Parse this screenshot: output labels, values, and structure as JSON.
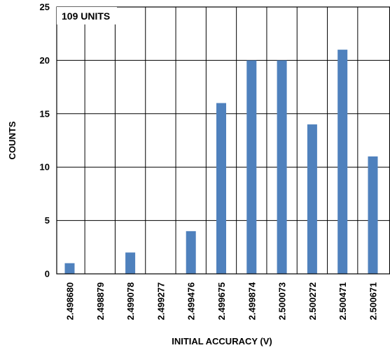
{
  "chart_data": {
    "type": "bar",
    "annotation": "109 UNITS",
    "xlabel": "INITIAL ACCURACY (V)",
    "ylabel": "COUNTS",
    "categories": [
      "2.498680",
      "2.498879",
      "2.499078",
      "2.499277",
      "2.499476",
      "2.499675",
      "2.499874",
      "2.500073",
      "2.500272",
      "2.500471",
      "2.500671"
    ],
    "values": [
      1,
      0,
      2,
      0,
      4,
      16,
      20,
      20,
      14,
      21,
      11
    ],
    "ylim": [
      0,
      25
    ],
    "yticks": [
      0,
      5,
      10,
      15,
      20,
      25
    ],
    "grid": true,
    "bar_color": "#4f81bd"
  }
}
